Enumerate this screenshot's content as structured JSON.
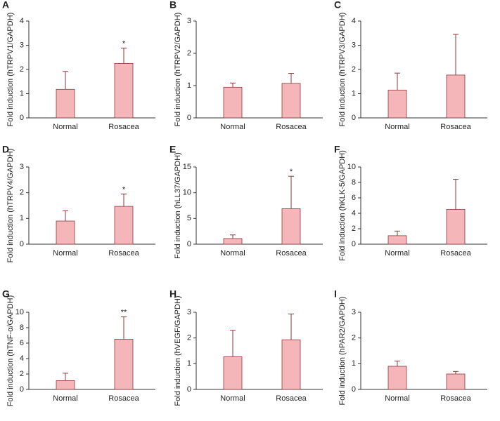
{
  "chart_data": [
    {
      "type": "bar",
      "panel": "A",
      "ylabel": "Fold induction (hTRPV1/GAPDH)",
      "categories": [
        "Normal",
        "Rosacea"
      ],
      "values": [
        1.18,
        2.25
      ],
      "errors": [
        0.74,
        0.63
      ],
      "significance": [
        null,
        "*"
      ],
      "ylim": [
        0,
        4
      ],
      "yticks": [
        0,
        1,
        2,
        3,
        4
      ],
      "color": "#f4b6b8"
    },
    {
      "type": "bar",
      "panel": "B",
      "ylabel": "Fold induction (hTRPV2/GAPDH)",
      "categories": [
        "Normal",
        "Rosacea"
      ],
      "values": [
        0.95,
        1.07
      ],
      "errors": [
        0.13,
        0.31
      ],
      "significance": [
        null,
        null
      ],
      "ylim": [
        0,
        3
      ],
      "yticks": [
        0,
        1,
        2,
        3
      ],
      "color": "#f4b6b8"
    },
    {
      "type": "bar",
      "panel": "C",
      "ylabel": "Fold induction (hTRPV3/GAPDH)",
      "categories": [
        "Normal",
        "Rosacea"
      ],
      "values": [
        1.15,
        1.77
      ],
      "errors": [
        0.7,
        1.68
      ],
      "significance": [
        null,
        null
      ],
      "ylim": [
        0,
        4
      ],
      "yticks": [
        0,
        1,
        2,
        3,
        4
      ],
      "color": "#f4b6b8"
    },
    {
      "type": "bar",
      "panel": "D",
      "ylabel": "Fold induction (hTRPV4/GAPDH)",
      "categories": [
        "Normal",
        "Rosacea"
      ],
      "values": [
        0.9,
        1.47
      ],
      "errors": [
        0.4,
        0.48
      ],
      "significance": [
        null,
        "*"
      ],
      "ylim": [
        0,
        3
      ],
      "yticks": [
        0,
        1,
        2,
        3
      ],
      "color": "#f4b6b8"
    },
    {
      "type": "bar",
      "panel": "E",
      "ylabel": "Fold induction (hLL37/GAPDH)",
      "categories": [
        "Normal",
        "Rosacea"
      ],
      "values": [
        1.1,
        6.9
      ],
      "errors": [
        0.7,
        6.3
      ],
      "significance": [
        null,
        "*"
      ],
      "ylim": [
        0,
        15
      ],
      "yticks": [
        0,
        5,
        10,
        15
      ],
      "color": "#f4b6b8"
    },
    {
      "type": "bar",
      "panel": "F",
      "ylabel": "Fold induction (hKLK-5/GAPDH)",
      "categories": [
        "Normal",
        "Rosacea"
      ],
      "values": [
        1.1,
        4.5
      ],
      "errors": [
        0.6,
        3.9
      ],
      "significance": [
        null,
        null
      ],
      "ylim": [
        0,
        10
      ],
      "yticks": [
        0,
        2,
        4,
        6,
        8,
        10
      ],
      "color": "#f4b6b8"
    },
    {
      "type": "bar",
      "panel": "G",
      "ylabel": "Fold induction (hTNF-α/GAPDH)",
      "categories": [
        "Normal",
        "Rosacea"
      ],
      "values": [
        1.15,
        6.5
      ],
      "errors": [
        0.95,
        2.9
      ],
      "significance": [
        null,
        "**"
      ],
      "ylim": [
        0,
        10
      ],
      "yticks": [
        0,
        2,
        4,
        6,
        8,
        10
      ],
      "color": "#f4b6b8"
    },
    {
      "type": "bar",
      "panel": "H",
      "ylabel": "Fold induction (hVEGF/GAPDH)",
      "categories": [
        "Normal",
        "Rosacea"
      ],
      "values": [
        1.27,
        1.93
      ],
      "errors": [
        1.03,
        1.0
      ],
      "significance": [
        null,
        null
      ],
      "ylim": [
        0,
        3
      ],
      "yticks": [
        0,
        1,
        2,
        3
      ],
      "color": "#f4b6b8"
    },
    {
      "type": "bar",
      "panel": "I",
      "ylabel": "Fold induction (hPAR2/GAPDH)",
      "categories": [
        "Normal",
        "Rosacea"
      ],
      "values": [
        0.9,
        0.6
      ],
      "errors": [
        0.2,
        0.1
      ],
      "significance": [
        null,
        null
      ],
      "ylim": [
        0,
        3
      ],
      "yticks": [
        0,
        1,
        2,
        3
      ],
      "color": "#f4b6b8"
    }
  ]
}
